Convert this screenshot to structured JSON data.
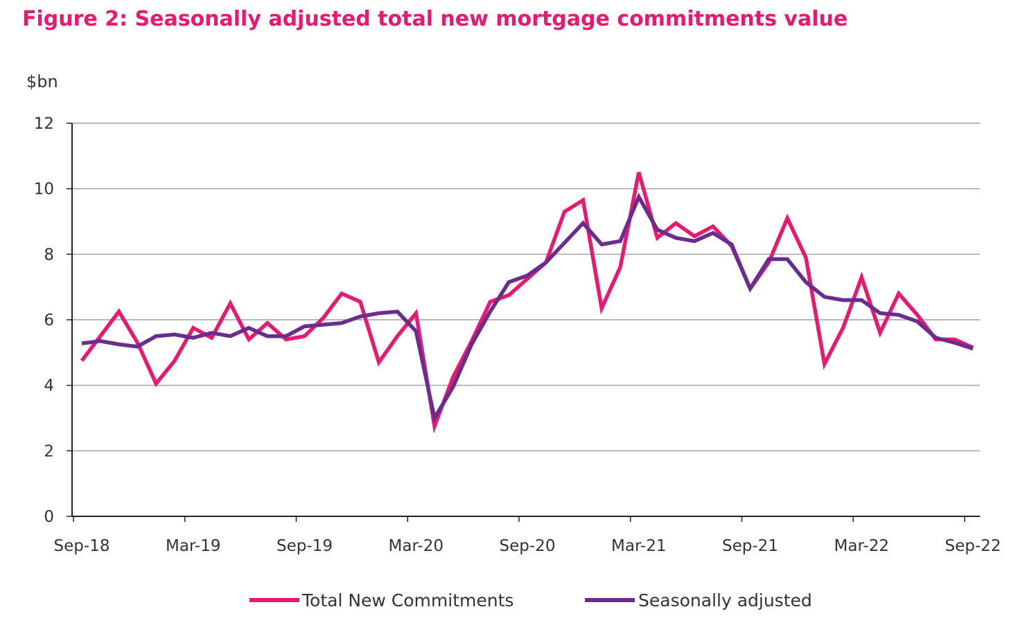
{
  "chart_data": {
    "type": "line",
    "title": "Figure 2:  Seasonally adjusted total new mortgage commitments value",
    "ylabel": "$bn",
    "ylim": [
      0,
      12
    ],
    "yticks": [
      0,
      2,
      4,
      6,
      8,
      10,
      12
    ],
    "grid": "horizontal",
    "legend_position": "bottom-center",
    "x": [
      "Sep-18",
      "Oct-18",
      "Nov-18",
      "Dec-18",
      "Jan-19",
      "Feb-19",
      "Mar-19",
      "Apr-19",
      "May-19",
      "Jun-19",
      "Jul-19",
      "Aug-19",
      "Sep-19",
      "Oct-19",
      "Nov-19",
      "Dec-19",
      "Jan-20",
      "Feb-20",
      "Mar-20",
      "Apr-20",
      "May-20",
      "Jun-20",
      "Jul-20",
      "Aug-20",
      "Sep-20",
      "Oct-20",
      "Nov-20",
      "Dec-20",
      "Jan-21",
      "Feb-21",
      "Mar-21",
      "Apr-21",
      "May-21",
      "Jun-21",
      "Jul-21",
      "Aug-21",
      "Sep-21",
      "Oct-21",
      "Nov-21",
      "Dec-21",
      "Jan-22",
      "Feb-22",
      "Mar-22",
      "Apr-22",
      "May-22",
      "Jun-22",
      "Jul-22",
      "Aug-22",
      "Sep-22"
    ],
    "xtick_labels": [
      "Sep-18",
      "Mar-19",
      "Sep-19",
      "Mar-20",
      "Sep-20",
      "Mar-21",
      "Sep-21",
      "Mar-22",
      "Sep-22"
    ],
    "series": [
      {
        "name": "Total New Commitments",
        "color": "#E8196F",
        "values": [
          4.75,
          5.5,
          6.25,
          5.3,
          4.05,
          4.75,
          5.75,
          5.45,
          6.5,
          5.4,
          5.9,
          5.4,
          5.5,
          6.05,
          6.8,
          6.55,
          4.7,
          5.5,
          6.2,
          2.75,
          4.25,
          5.35,
          6.55,
          6.75,
          7.25,
          7.75,
          9.3,
          9.65,
          6.35,
          7.6,
          10.5,
          8.5,
          8.95,
          8.55,
          8.85,
          8.25,
          6.95,
          7.75,
          9.1,
          7.9,
          4.65,
          5.75,
          7.3,
          5.6,
          6.8,
          6.15,
          5.4,
          5.4,
          5.15
        ]
      },
      {
        "name": "Seasonally adjusted",
        "color": "#6B2C8F",
        "values": [
          5.28,
          5.35,
          5.25,
          5.18,
          5.5,
          5.55,
          5.45,
          5.6,
          5.5,
          5.75,
          5.5,
          5.5,
          5.8,
          5.85,
          5.9,
          6.1,
          6.2,
          6.25,
          5.65,
          3.0,
          3.95,
          5.25,
          6.25,
          7.15,
          7.35,
          7.75,
          8.35,
          8.95,
          8.3,
          8.4,
          9.75,
          8.75,
          8.5,
          8.4,
          8.65,
          8.3,
          6.95,
          7.85,
          7.85,
          7.15,
          6.7,
          6.6,
          6.6,
          6.2,
          6.15,
          5.95,
          5.45,
          5.3,
          5.12
        ]
      }
    ]
  }
}
